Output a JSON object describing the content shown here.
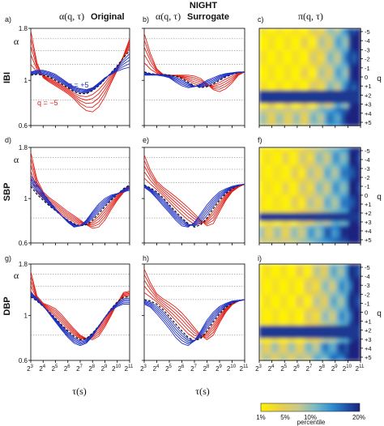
{
  "figure": {
    "title": "NIGHT",
    "col_headers": [
      {
        "alpha": "α(q, τ)",
        "tag": "Original"
      },
      {
        "alpha": "α(q, τ)",
        "tag": "Surrogate"
      },
      {
        "alpha": "π(q, τ)",
        "tag": ""
      }
    ],
    "row_labels": [
      "IBI",
      "SBP",
      "DBP"
    ],
    "panel_letters": [
      "a)",
      "b)",
      "c)",
      "d)",
      "e)",
      "f)",
      "g)",
      "h)",
      "i)"
    ],
    "alpha_axis_label": "α",
    "x_axis_label": "τ(s)",
    "q_axis_label": "q",
    "y_ticks": [
      "1.8",
      "1",
      "0.6"
    ],
    "x_tick_base": "2",
    "x_tick_exponents": [
      "3",
      "4",
      "5",
      "6",
      "7",
      "8",
      "9",
      "10",
      "11"
    ],
    "q_ticks": [
      "-5",
      "-4",
      "-3",
      "-2",
      "-1",
      "0",
      "+1",
      "+2",
      "+3",
      "+4",
      "+5"
    ],
    "annotations": {
      "q_plus": "q = +5",
      "q_minus": "q = −5"
    },
    "colorbar": {
      "label": "percentile",
      "ticks": [
        "1%",
        "5%",
        "10%",
        "20%"
      ],
      "colors": [
        "#fff200",
        "#e8cf4c",
        "#c7c98a",
        "#79b9c6",
        "#2e8fd0",
        "#1e4fa6",
        "#1a237e"
      ]
    },
    "colors": {
      "q_negative": "#e0221a",
      "q_zero": "#000000",
      "q_positive": "#1f2fc0"
    }
  },
  "chart_data": [
    {
      "panel": "a",
      "row": "IBI",
      "type": "line",
      "x_scale": "log2",
      "y_scale": "log",
      "xlim": [
        3,
        11
      ],
      "ylim": [
        0.6,
        1.8
      ],
      "x": [
        3,
        3.5,
        4,
        4.5,
        5,
        5.5,
        6,
        6.5,
        7,
        7.5,
        8,
        8.5,
        9,
        9.5,
        10,
        10.5,
        11
      ],
      "q_neg5": [
        1.75,
        1.22,
        1.03,
        0.98,
        0.94,
        0.9,
        0.86,
        0.81,
        0.75,
        0.71,
        0.7,
        0.74,
        0.83,
        0.97,
        1.12,
        1.32,
        1.6
      ],
      "q_0": [
        1.06,
        1.07,
        1.06,
        1.04,
        1.0,
        0.96,
        0.92,
        0.88,
        0.86,
        0.86,
        0.89,
        0.94,
        1.01,
        1.09,
        1.18,
        1.29,
        1.4
      ],
      "q_pos5": [
        1.1,
        1.12,
        1.12,
        1.1,
        1.07,
        1.02,
        0.97,
        0.93,
        0.91,
        0.9,
        0.92,
        0.97,
        1.03,
        1.07,
        1.11,
        1.14,
        1.16
      ]
    },
    {
      "panel": "b",
      "row": "IBI",
      "type": "line",
      "x_scale": "log2",
      "y_scale": "log",
      "xlim": [
        3,
        11
      ],
      "ylim": [
        0.6,
        1.8
      ],
      "x": [
        3,
        3.5,
        4,
        4.5,
        5,
        5.5,
        6,
        6.5,
        7,
        7.5,
        8,
        8.5,
        9,
        9.5,
        10,
        10.5,
        11
      ],
      "q_neg5": [
        1.7,
        1.35,
        1.14,
        1.07,
        1.06,
        1.06,
        1.06,
        1.06,
        1.05,
        1.02,
        0.96,
        0.9,
        0.88,
        0.91,
        0.97,
        1.06,
        1.1
      ],
      "q_0": [
        1.1,
        1.08,
        1.07,
        1.07,
        1.06,
        1.05,
        1.02,
        0.98,
        0.94,
        0.92,
        0.93,
        0.96,
        1.0,
        1.04,
        1.07,
        1.09,
        1.1
      ],
      "q_pos5": [
        1.06,
        1.06,
        1.06,
        1.05,
        1.03,
        0.98,
        0.94,
        0.92,
        0.93,
        0.96,
        1.0,
        1.03,
        1.06,
        1.08,
        1.09,
        1.1,
        1.1
      ]
    },
    {
      "panel": "d",
      "row": "SBP",
      "type": "line",
      "x_scale": "log2",
      "y_scale": "log",
      "xlim": [
        3,
        11
      ],
      "ylim": [
        0.6,
        1.8
      ],
      "x": [
        3,
        3.5,
        4,
        4.5,
        5,
        5.5,
        6,
        6.5,
        7,
        7.5,
        8,
        8.5,
        9,
        9.5,
        10,
        10.5,
        11
      ],
      "q_neg5": [
        1.7,
        1.25,
        1.08,
        1.01,
        0.96,
        0.91,
        0.86,
        0.82,
        0.78,
        0.74,
        0.71,
        0.72,
        0.78,
        0.88,
        0.98,
        1.07,
        1.12
      ],
      "q_0": [
        1.15,
        1.05,
        0.98,
        0.92,
        0.87,
        0.82,
        0.78,
        0.75,
        0.73,
        0.74,
        0.78,
        0.84,
        0.91,
        0.98,
        1.05,
        1.12,
        1.17
      ],
      "q_pos5": [
        1.3,
        1.18,
        1.07,
        0.97,
        0.89,
        0.82,
        0.76,
        0.72,
        0.73,
        0.78,
        0.86,
        0.94,
        1.0,
        1.04,
        1.06,
        1.08,
        1.1
      ]
    },
    {
      "panel": "e",
      "row": "SBP",
      "type": "line",
      "x_scale": "log2",
      "y_scale": "log",
      "xlim": [
        3,
        11
      ],
      "ylim": [
        0.6,
        1.8
      ],
      "x": [
        3,
        3.5,
        4,
        4.5,
        5,
        5.5,
        6,
        6.5,
        7,
        7.5,
        8,
        8.5,
        9,
        9.5,
        10,
        10.5,
        11
      ],
      "q_neg5": [
        1.65,
        1.38,
        1.22,
        1.14,
        1.08,
        1.02,
        0.96,
        0.9,
        0.84,
        0.78,
        0.73,
        0.75,
        0.86,
        0.98,
        1.08,
        1.14,
        1.18
      ],
      "q_0": [
        1.17,
        1.13,
        1.08,
        1.01,
        0.93,
        0.86,
        0.8,
        0.75,
        0.72,
        0.74,
        0.8,
        0.89,
        0.98,
        1.06,
        1.12,
        1.16,
        1.18
      ],
      "q_pos5": [
        1.14,
        1.08,
        1.0,
        0.92,
        0.85,
        0.78,
        0.73,
        0.72,
        0.76,
        0.84,
        0.93,
        1.01,
        1.08,
        1.12,
        1.15,
        1.17,
        1.18
      ]
    },
    {
      "panel": "g",
      "row": "DBP",
      "type": "line",
      "x_scale": "log2",
      "y_scale": "log",
      "xlim": [
        3,
        11
      ],
      "ylim": [
        0.6,
        1.8
      ],
      "x": [
        3,
        3.5,
        4,
        4.5,
        5,
        5.5,
        6,
        6.5,
        7,
        7.5,
        8,
        8.5,
        9,
        9.5,
        10,
        10.5,
        11
      ],
      "q_neg5": [
        1.65,
        1.25,
        1.15,
        1.12,
        1.08,
        1.01,
        0.93,
        0.86,
        0.8,
        0.77,
        0.76,
        0.79,
        0.88,
        1.0,
        1.15,
        1.3,
        1.32
      ],
      "q_0": [
        1.24,
        1.18,
        1.11,
        1.04,
        0.97,
        0.9,
        0.84,
        0.79,
        0.76,
        0.77,
        0.82,
        0.89,
        0.98,
        1.08,
        1.17,
        1.23,
        1.24
      ],
      "q_pos5": [
        1.3,
        1.22,
        1.12,
        1.02,
        0.93,
        0.85,
        0.78,
        0.73,
        0.71,
        0.73,
        0.79,
        0.88,
        0.98,
        1.06,
        1.11,
        1.14,
        1.14
      ]
    },
    {
      "panel": "h",
      "row": "DBP",
      "type": "line",
      "x_scale": "log2",
      "y_scale": "log",
      "xlim": [
        3,
        11
      ],
      "ylim": [
        0.6,
        1.8
      ],
      "x": [
        3,
        3.5,
        4,
        4.5,
        5,
        5.5,
        6,
        6.5,
        7,
        7.5,
        8,
        8.5,
        9,
        9.5,
        10,
        10.5,
        11
      ],
      "q_neg5": [
        1.7,
        1.45,
        1.28,
        1.21,
        1.16,
        1.1,
        1.03,
        0.95,
        0.87,
        0.8,
        0.76,
        0.8,
        0.92,
        1.04,
        1.13,
        1.18,
        1.2
      ],
      "q_0": [
        1.2,
        1.18,
        1.14,
        1.07,
        0.99,
        0.91,
        0.84,
        0.78,
        0.75,
        0.77,
        0.84,
        0.93,
        1.02,
        1.1,
        1.15,
        1.18,
        1.2
      ],
      "q_pos5": [
        1.14,
        1.1,
        1.02,
        0.94,
        0.86,
        0.78,
        0.73,
        0.71,
        0.75,
        0.84,
        0.95,
        1.04,
        1.11,
        1.15,
        1.18,
        1.19,
        1.2
      ]
    }
  ]
}
